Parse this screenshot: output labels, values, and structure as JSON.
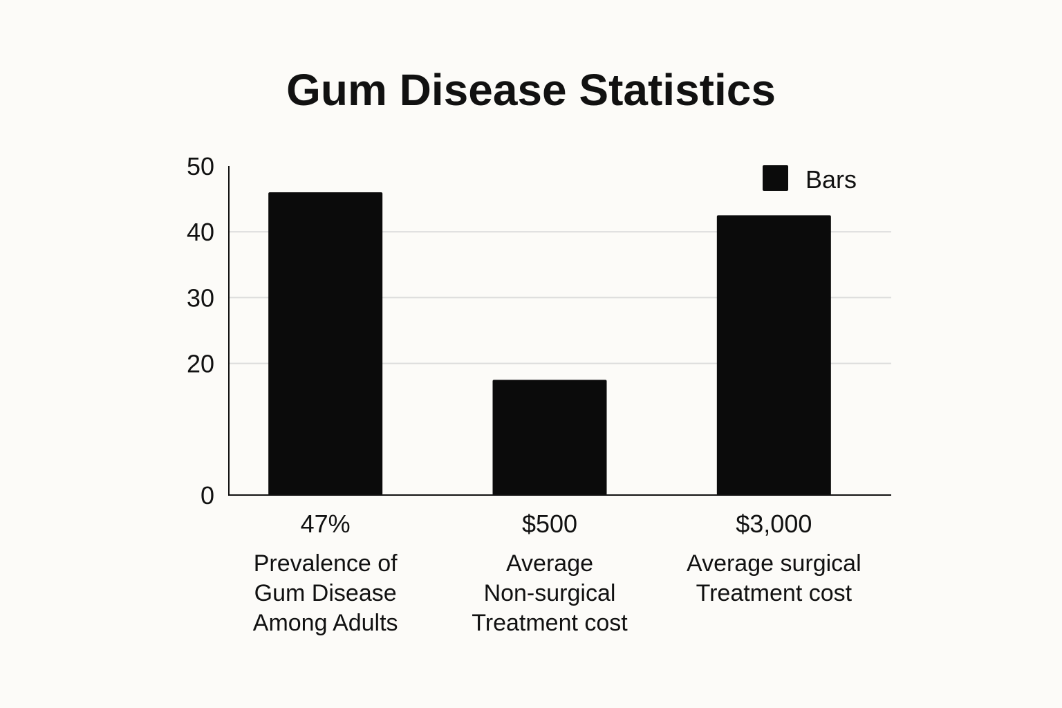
{
  "chart_data": {
    "type": "bar",
    "title": "Gum Disease Statistics",
    "categories": [
      {
        "value_label": "47%",
        "label_lines": [
          "Prevalence of",
          "Gum Disease",
          "Among Adults"
        ]
      },
      {
        "value_label": "$500",
        "label_lines": [
          "Average",
          "Non-surgical",
          "Treatment cost"
        ]
      },
      {
        "value_label": "$3,000",
        "label_lines": [
          "Average surgical",
          "Treatment cost"
        ]
      }
    ],
    "series": [
      {
        "name": "Bars",
        "values": [
          46,
          17.5,
          42.5
        ]
      }
    ],
    "yticks": [
      0,
      20,
      30,
      40,
      50
    ],
    "ylim": [
      0,
      50
    ],
    "grid": true,
    "legend": "top-right",
    "colors": {
      "bar": "#0b0b0b",
      "grid": "#dcdcdc",
      "axis": "#111111",
      "background": "#fcfbf8"
    }
  }
}
